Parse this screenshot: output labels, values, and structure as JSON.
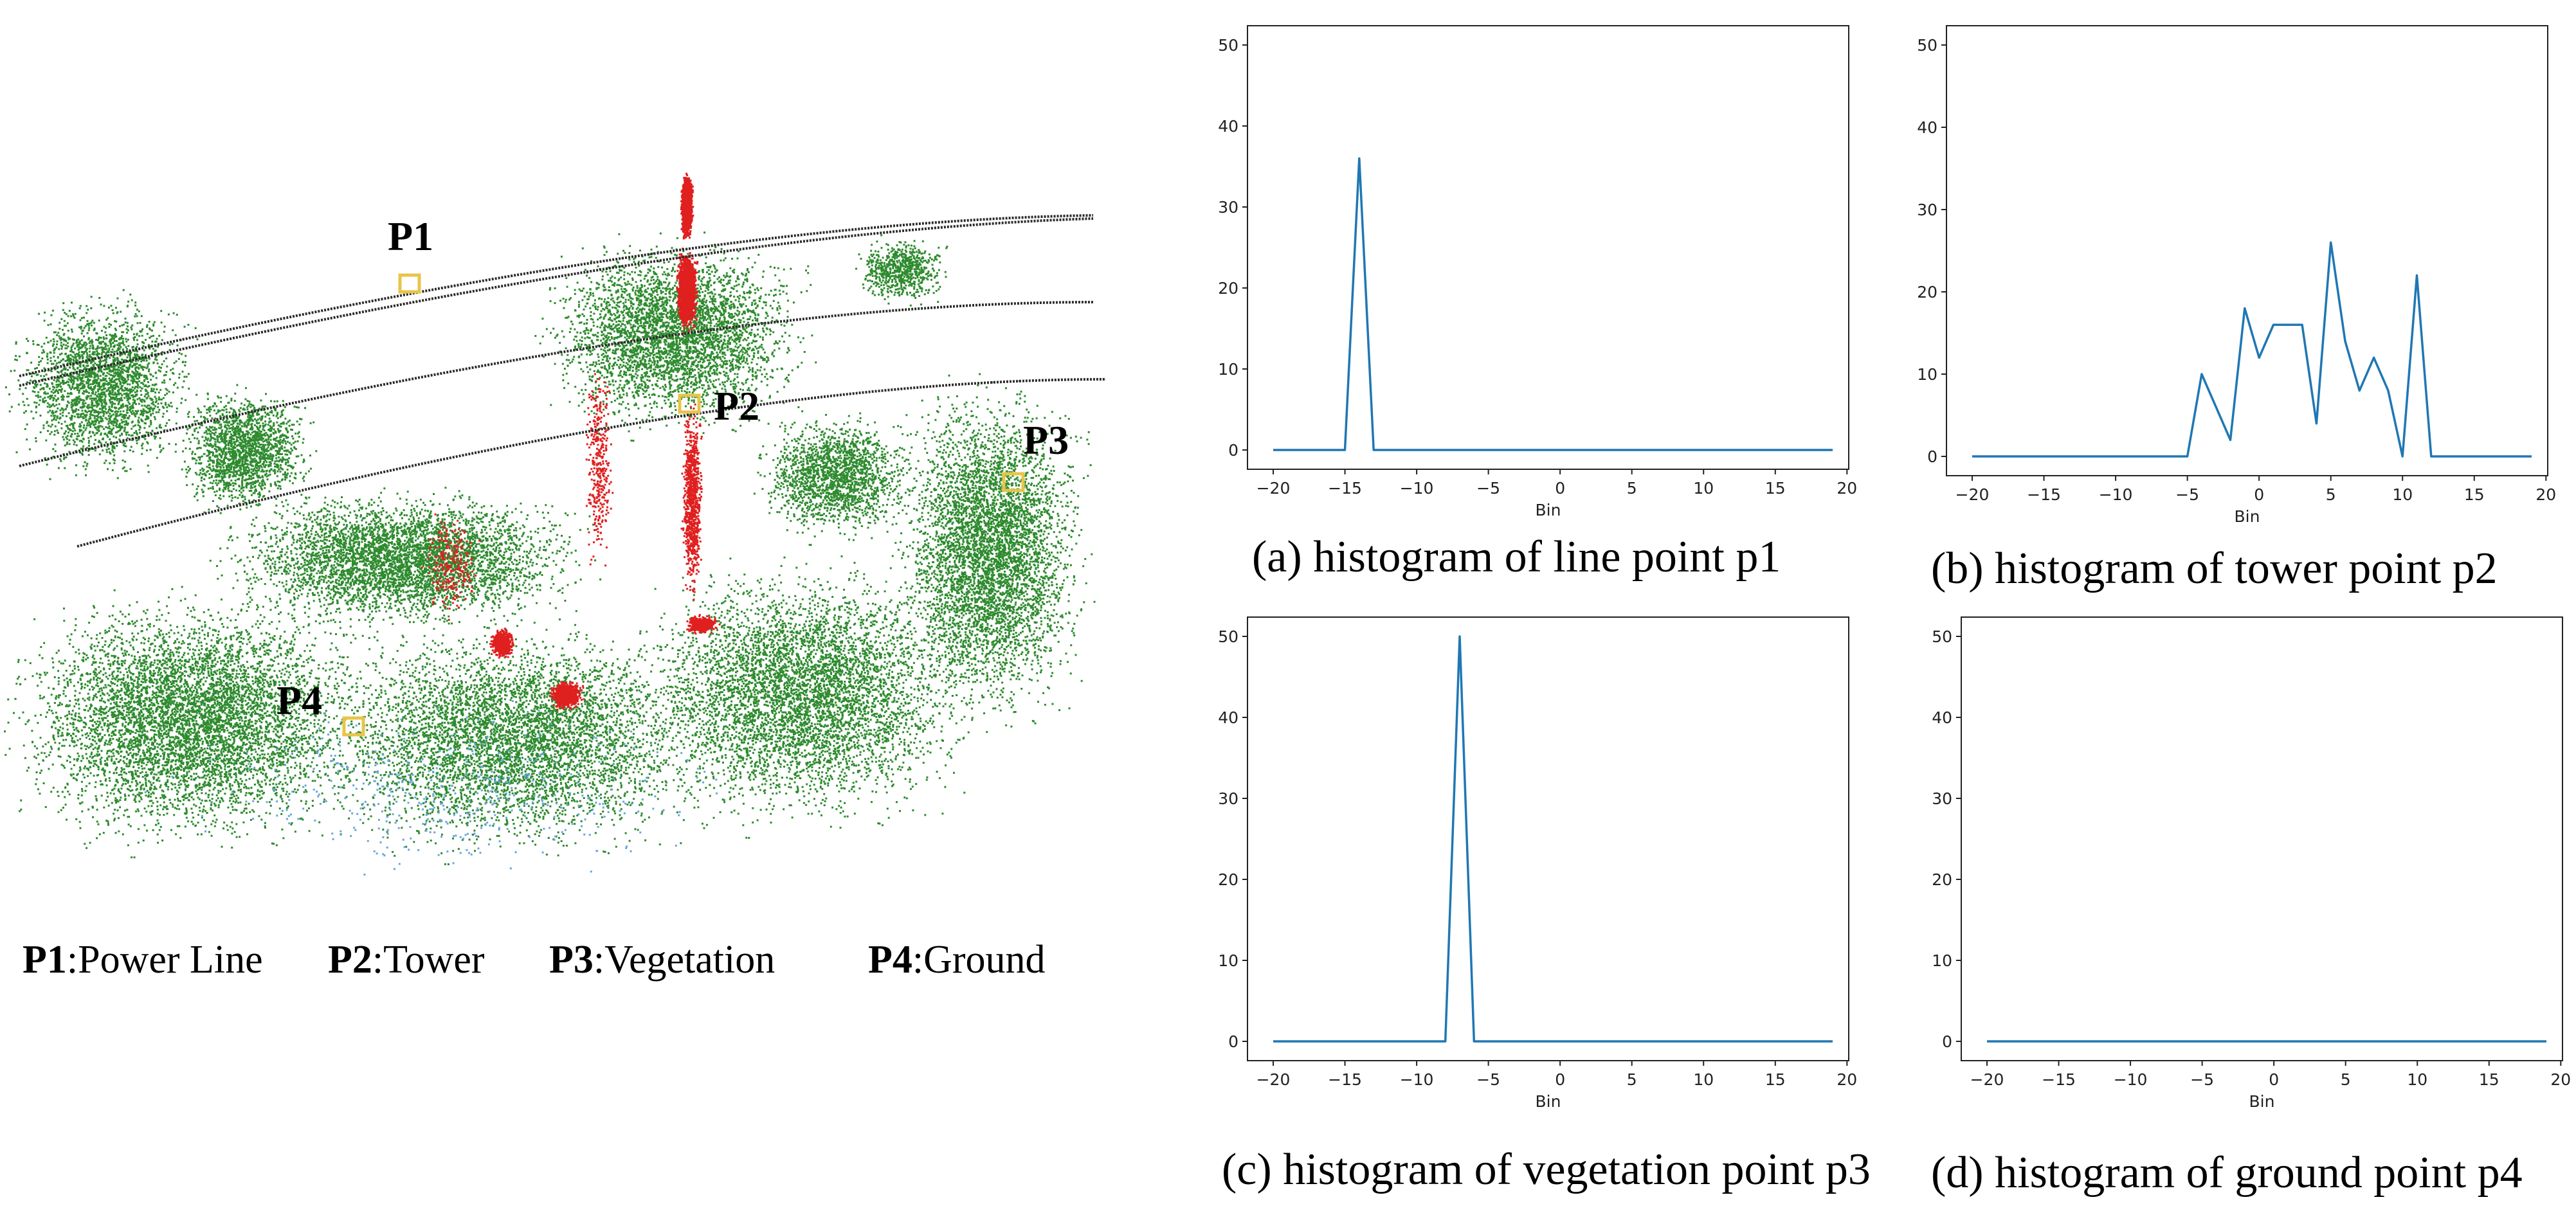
{
  "point_labels": [
    "P1",
    "P2",
    "P3",
    "P4"
  ],
  "legend": [
    {
      "key": "P1",
      "text": ":Power Line"
    },
    {
      "key": "P2",
      "text": ":Tower"
    },
    {
      "key": "P3",
      "text": ":Vegetation"
    },
    {
      "key": "P4",
      "text": ":Ground"
    }
  ],
  "colors": {
    "vegetation": "#2e8b2e",
    "tower": "#e01f1f",
    "power_line": "#2b2b2b",
    "ground": "#6aa6d8",
    "marker": "#e8c44a",
    "series": "#1f77b4"
  },
  "chart_data": [
    {
      "type": "line",
      "caption": "(a) histogram of line point p1",
      "xlabel": "Bin",
      "ylabel": "",
      "xlim": [
        -20,
        19
      ],
      "ylim": [
        0,
        50
      ],
      "xticks": [
        -20,
        -15,
        -10,
        -5,
        0,
        5,
        10,
        15,
        20
      ],
      "yticks": [
        0,
        10,
        20,
        30,
        40,
        50
      ],
      "x": [
        -20,
        -19,
        -18,
        -17,
        -16,
        -15,
        -14,
        -13,
        -12,
        -11,
        -10,
        -9,
        -8,
        -7,
        -6,
        -5,
        -4,
        -3,
        -2,
        -1,
        0,
        1,
        2,
        3,
        4,
        5,
        6,
        7,
        8,
        9,
        10,
        11,
        12,
        13,
        14,
        15,
        16,
        17,
        18,
        19
      ],
      "values": [
        0,
        0,
        0,
        0,
        0,
        0,
        36,
        0,
        0,
        0,
        0,
        0,
        0,
        0,
        0,
        0,
        0,
        0,
        0,
        0,
        0,
        0,
        0,
        0,
        0,
        0,
        0,
        0,
        0,
        0,
        0,
        0,
        0,
        0,
        0,
        0,
        0,
        0,
        0,
        0
      ],
      "grid": false
    },
    {
      "type": "line",
      "caption": "(b) histogram of tower point p2",
      "xlabel": "Bin",
      "ylabel": "",
      "xlim": [
        -20,
        19
      ],
      "ylim": [
        0,
        50
      ],
      "xticks": [
        -20,
        -15,
        -10,
        -5,
        0,
        5,
        10,
        15,
        20
      ],
      "yticks": [
        0,
        10,
        20,
        30,
        40,
        50
      ],
      "x": [
        -20,
        -19,
        -18,
        -17,
        -16,
        -15,
        -14,
        -13,
        -12,
        -11,
        -10,
        -9,
        -8,
        -7,
        -6,
        -5,
        -4,
        -3,
        -2,
        -1,
        0,
        1,
        2,
        3,
        4,
        5,
        6,
        7,
        8,
        9,
        10,
        11,
        12,
        13,
        14,
        15,
        16,
        17,
        18,
        19
      ],
      "values": [
        0,
        0,
        0,
        0,
        0,
        0,
        0,
        0,
        0,
        0,
        0,
        0,
        0,
        0,
        0,
        0,
        10,
        6,
        2,
        18,
        12,
        16,
        16,
        16,
        4,
        26,
        14,
        8,
        12,
        8,
        0,
        22,
        0,
        0,
        0,
        0,
        0,
        0,
        0,
        0
      ],
      "grid": false
    },
    {
      "type": "line",
      "caption": "(c) histogram of vegetation point p3",
      "xlabel": "Bin",
      "ylabel": "",
      "xlim": [
        -20,
        19
      ],
      "ylim": [
        0,
        50
      ],
      "xticks": [
        -20,
        -15,
        -10,
        -5,
        0,
        5,
        10,
        15,
        20
      ],
      "yticks": [
        0,
        10,
        20,
        30,
        40,
        50
      ],
      "x": [
        -20,
        -19,
        -18,
        -17,
        -16,
        -15,
        -14,
        -13,
        -12,
        -11,
        -10,
        -9,
        -8,
        -7,
        -6,
        -5,
        -4,
        -3,
        -2,
        -1,
        0,
        1,
        2,
        3,
        4,
        5,
        6,
        7,
        8,
        9,
        10,
        11,
        12,
        13,
        14,
        15,
        16,
        17,
        18,
        19
      ],
      "values": [
        0,
        0,
        0,
        0,
        0,
        0,
        0,
        0,
        0,
        0,
        0,
        0,
        0,
        50,
        0,
        0,
        0,
        0,
        0,
        0,
        0,
        0,
        0,
        0,
        0,
        0,
        0,
        0,
        0,
        0,
        0,
        0,
        0,
        0,
        0,
        0,
        0,
        0,
        0,
        0
      ],
      "grid": false
    },
    {
      "type": "line",
      "caption": "(d) histogram of ground point p4",
      "xlabel": "Bin",
      "ylabel": "",
      "xlim": [
        -20,
        19
      ],
      "ylim": [
        0,
        50
      ],
      "xticks": [
        -20,
        -15,
        -10,
        -5,
        0,
        5,
        10,
        15,
        20
      ],
      "yticks": [
        0,
        10,
        20,
        30,
        40,
        50
      ],
      "x": [
        -20,
        -19,
        -18,
        -17,
        -16,
        -15,
        -14,
        -13,
        -12,
        -11,
        -10,
        -9,
        -8,
        -7,
        -6,
        -5,
        -4,
        -3,
        -2,
        -1,
        0,
        1,
        2,
        3,
        4,
        5,
        6,
        7,
        8,
        9,
        10,
        11,
        12,
        13,
        14,
        15,
        16,
        17,
        18,
        19
      ],
      "values": [
        0,
        0,
        0,
        0,
        0,
        0,
        0,
        0,
        0,
        0,
        0,
        0,
        0,
        0,
        0,
        0,
        0,
        0,
        0,
        0,
        0,
        0,
        0,
        0,
        0,
        0,
        0,
        0,
        0,
        0,
        0,
        0,
        0,
        0,
        0,
        0,
        0,
        0,
        0,
        0
      ],
      "grid": false
    }
  ]
}
